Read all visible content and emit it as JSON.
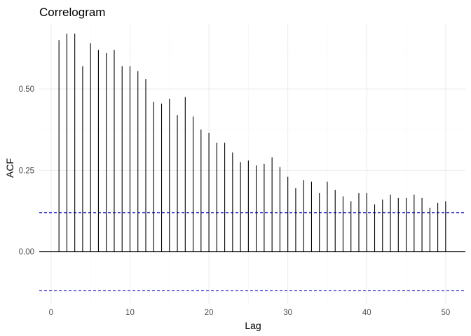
{
  "chart_data": {
    "type": "bar",
    "title": "Correlogram",
    "xlabel": "Lag",
    "ylabel": "ACF",
    "xlim": [
      -1.5,
      52.5
    ],
    "ylim": [
      -0.16,
      0.7
    ],
    "x_ticks": [
      0,
      10,
      20,
      30,
      40,
      50
    ],
    "x_tick_labels": [
      "0",
      "10",
      "20",
      "30",
      "40",
      "50"
    ],
    "y_ticks": [
      0.0,
      0.25,
      0.5
    ],
    "y_tick_labels": [
      "0.00",
      "0.25",
      "0.50"
    ],
    "grid": true,
    "confidence_bound": 0.12,
    "confidence_color": "#0000cc",
    "bar_color": "#000000",
    "lags": [
      1,
      2,
      3,
      4,
      5,
      6,
      7,
      8,
      9,
      10,
      11,
      12,
      13,
      14,
      15,
      16,
      17,
      18,
      19,
      20,
      21,
      22,
      23,
      24,
      25,
      26,
      27,
      28,
      29,
      30,
      31,
      32,
      33,
      34,
      35,
      36,
      37,
      38,
      39,
      40,
      41,
      42,
      43,
      44,
      45,
      46,
      47,
      48,
      49,
      50
    ],
    "values": [
      0.65,
      0.67,
      0.67,
      0.57,
      0.64,
      0.62,
      0.61,
      0.62,
      0.57,
      0.57,
      0.555,
      0.53,
      0.46,
      0.455,
      0.47,
      0.42,
      0.475,
      0.415,
      0.375,
      0.365,
      0.335,
      0.335,
      0.305,
      0.275,
      0.28,
      0.265,
      0.27,
      0.29,
      0.26,
      0.23,
      0.195,
      0.22,
      0.215,
      0.18,
      0.215,
      0.19,
      0.17,
      0.155,
      0.18,
      0.18,
      0.145,
      0.16,
      0.175,
      0.165,
      0.165,
      0.175,
      0.165,
      0.135,
      0.15,
      0.155
    ]
  }
}
